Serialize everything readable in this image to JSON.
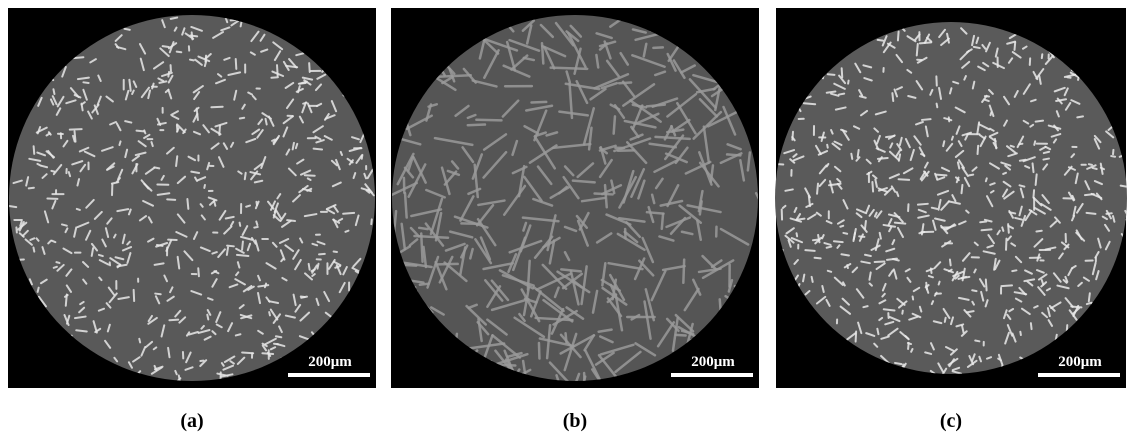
{
  "panels": [
    {
      "label": "(a)",
      "scale_bar": "200μm"
    },
    {
      "label": "(b)",
      "scale_bar": "200μm"
    },
    {
      "label": "(c)",
      "scale_bar": "200μm"
    }
  ]
}
